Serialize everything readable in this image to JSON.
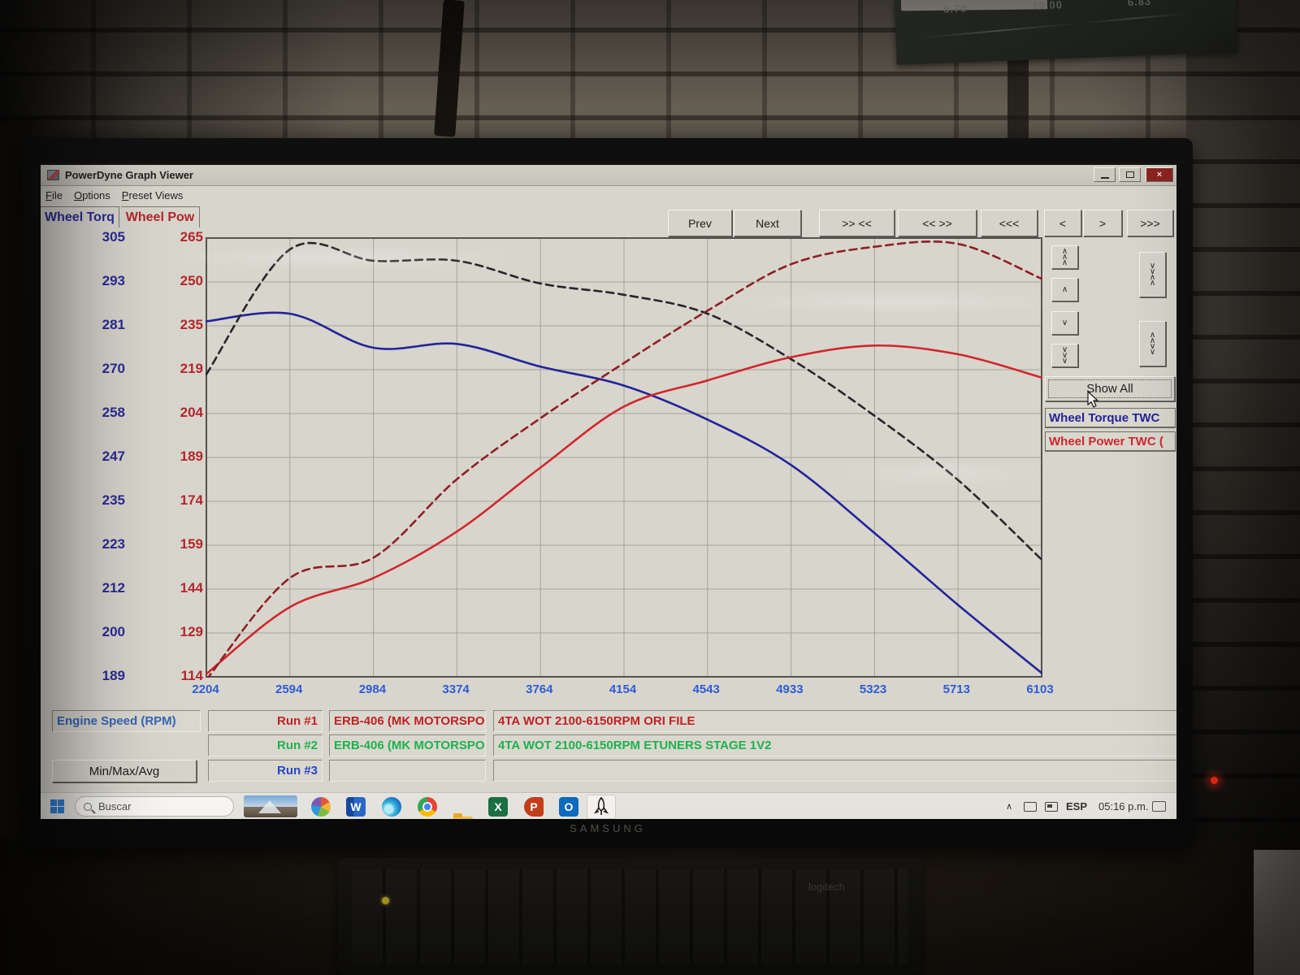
{
  "wall_note": {
    "values": [
      "6.70",
      "10.00",
      "6.83"
    ]
  },
  "window": {
    "title": "PowerDyne Graph Viewer",
    "menu": [
      "File",
      "Options",
      "Preset Views"
    ],
    "close_glyph": "×"
  },
  "toolbar": {
    "buttons": [
      "Prev",
      "Next",
      ">> <<",
      "<< >>",
      "<<<",
      "<",
      ">",
      ">>>"
    ]
  },
  "axes": {
    "torque_header": "Wheel Torq",
    "power_header": "Wheel Pow",
    "torque_ticks": [
      305,
      293,
      281,
      270,
      258,
      247,
      235,
      223,
      212,
      200,
      189
    ],
    "power_ticks": [
      265,
      250,
      235,
      219,
      204,
      189,
      174,
      159,
      144,
      129,
      114
    ],
    "rpm_ticks": [
      2204,
      2594,
      2984,
      3374,
      3764,
      4154,
      4543,
      4933,
      5323,
      5713,
      6103
    ]
  },
  "chart_data": {
    "type": "line",
    "x": [
      2204,
      2594,
      2984,
      3374,
      3764,
      4154,
      4543,
      4933,
      5323,
      5713,
      6103
    ],
    "x_label": "Engine Speed (RPM)",
    "grid": true,
    "y_left": {
      "label": "Wheel Torq",
      "min": 189,
      "max": 305
    },
    "y_right": {
      "label": "Wheel Pow",
      "min": 114,
      "max": 265
    },
    "series": [
      {
        "name": "Wheel Torque TWC - Run #1 ORI FILE",
        "axis": "left",
        "line": "solid",
        "color": "#23239b",
        "values": [
          283,
          285,
          276,
          277,
          271,
          266,
          257,
          245,
          227,
          208,
          190
        ]
      },
      {
        "name": "Wheel Torque TWC - Run #2 ETUNERS STAGE 1V2",
        "axis": "left",
        "line": "dashed",
        "color": "#26262a",
        "values": [
          269,
          302,
          299,
          299,
          293,
          290,
          285,
          273,
          258,
          241,
          220
        ]
      },
      {
        "name": "Wheel Power TWC - Run #1 ORI FILE",
        "axis": "right",
        "line": "solid",
        "color": "#d2262e",
        "values": [
          115,
          138,
          148,
          164,
          186,
          207,
          216,
          224,
          228,
          225,
          217
        ]
      },
      {
        "name": "Wheel Power TWC - Run #2 ETUNERS STAGE 1V2",
        "axis": "right",
        "line": "dashed",
        "color": "#8e1f24",
        "values": [
          113,
          148,
          155,
          182,
          203,
          222,
          240,
          256,
          262,
          263,
          251
        ]
      }
    ]
  },
  "right_panel": {
    "show_all": "Show All",
    "legend": [
      {
        "label": "Wheel Torque TWC",
        "color": "#22229a"
      },
      {
        "label": "Wheel Power TWC (",
        "color": "#cf2730"
      }
    ]
  },
  "runs": {
    "axis_label": "Engine Speed (RPM)",
    "min_max_avg": "Min/Max/Avg",
    "rows": [
      {
        "run": "Run #1",
        "file": "ERB-406 (MK MOTORSPO",
        "desc": "4TA WOT 2100-6150RPM ORI FILE"
      },
      {
        "run": "Run #2",
        "file": "ERB-406 (MK MOTORSPO",
        "desc": "4TA WOT 2100-6150RPM ETUNERS STAGE 1V2"
      },
      {
        "run": "Run #3",
        "file": "",
        "desc": ""
      }
    ]
  },
  "taskbar": {
    "search_placeholder": "Buscar",
    "language": "ESP",
    "time": "05:16 p.m."
  },
  "monitor": {
    "brand": "SAMSUNG"
  },
  "keyboard": {
    "brand": "logitech"
  }
}
